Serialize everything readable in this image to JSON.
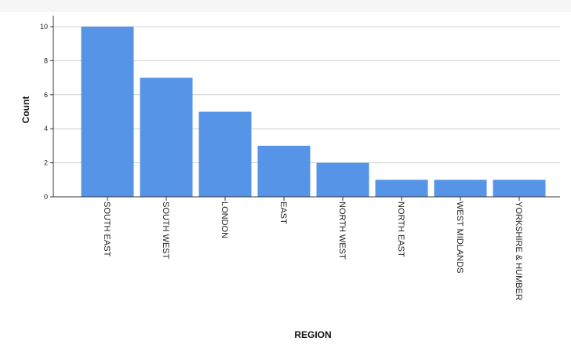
{
  "chart_data": {
    "type": "bar",
    "title": "",
    "xlabel": "REGION",
    "ylabel": "Count",
    "categories": [
      "SOUTH EAST",
      "SOUTH WEST",
      "LONDON",
      "EAST",
      "NORTH WEST",
      "NORTH EAST",
      "WEST MIDLANDS",
      "YORKSHIRE & HUMBER"
    ],
    "values": [
      10,
      7,
      5,
      3,
      2,
      1,
      1,
      1
    ],
    "ylim": [
      0,
      10
    ],
    "yticks": [
      "0",
      "2",
      "4",
      "6",
      "8",
      "10"
    ],
    "grid": true,
    "legend": "none"
  },
  "colors": {
    "bar": "#5594e6",
    "grid": "#cfcfcf",
    "axis": "#333333",
    "top_band": "#f6f6f6"
  }
}
